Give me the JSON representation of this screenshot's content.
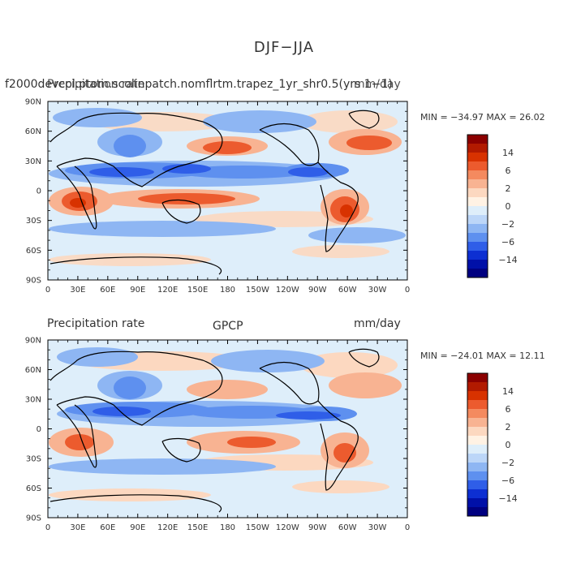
{
  "title": "DJF−JJA",
  "panels": [
    {
      "left_title": "f2000devcpl.ptom.scolinpatch.nomflrtm.trapez_1yr_shr0.5(yrs 1−1)",
      "overlay_title": "Precipitation rate",
      "units": "mm/day",
      "min_max": "MIN = −34.97 MAX =  26.02"
    },
    {
      "left_title": "Precipitation rate",
      "overlay_title": "GPCP",
      "units": "mm/day",
      "min_max": "MIN = −24.01 MAX =  12.11"
    }
  ],
  "lat_labels": [
    "90N",
    "60N",
    "30N",
    "0",
    "30S",
    "60S",
    "90S"
  ],
  "lon_labels": [
    "0",
    "30E",
    "60E",
    "90E",
    "120E",
    "150E",
    "180",
    "150W",
    "120W",
    "90W",
    "60W",
    "30W",
    "0"
  ],
  "colorbar": {
    "labels": [
      "14",
      "6",
      "2",
      "0",
      "−2",
      "−6",
      "−14"
    ],
    "colors": [
      "#8b0000",
      "#b21a00",
      "#d83200",
      "#ec5b2e",
      "#f48a5f",
      "#f8b392",
      "#fcd8c0",
      "#fff2e4",
      "#deeefa",
      "#bcd6f8",
      "#8eb6f3",
      "#5e90ef",
      "#2f5ee8",
      "#0d2fd2",
      "#0010a8",
      "#000080"
    ]
  }
}
